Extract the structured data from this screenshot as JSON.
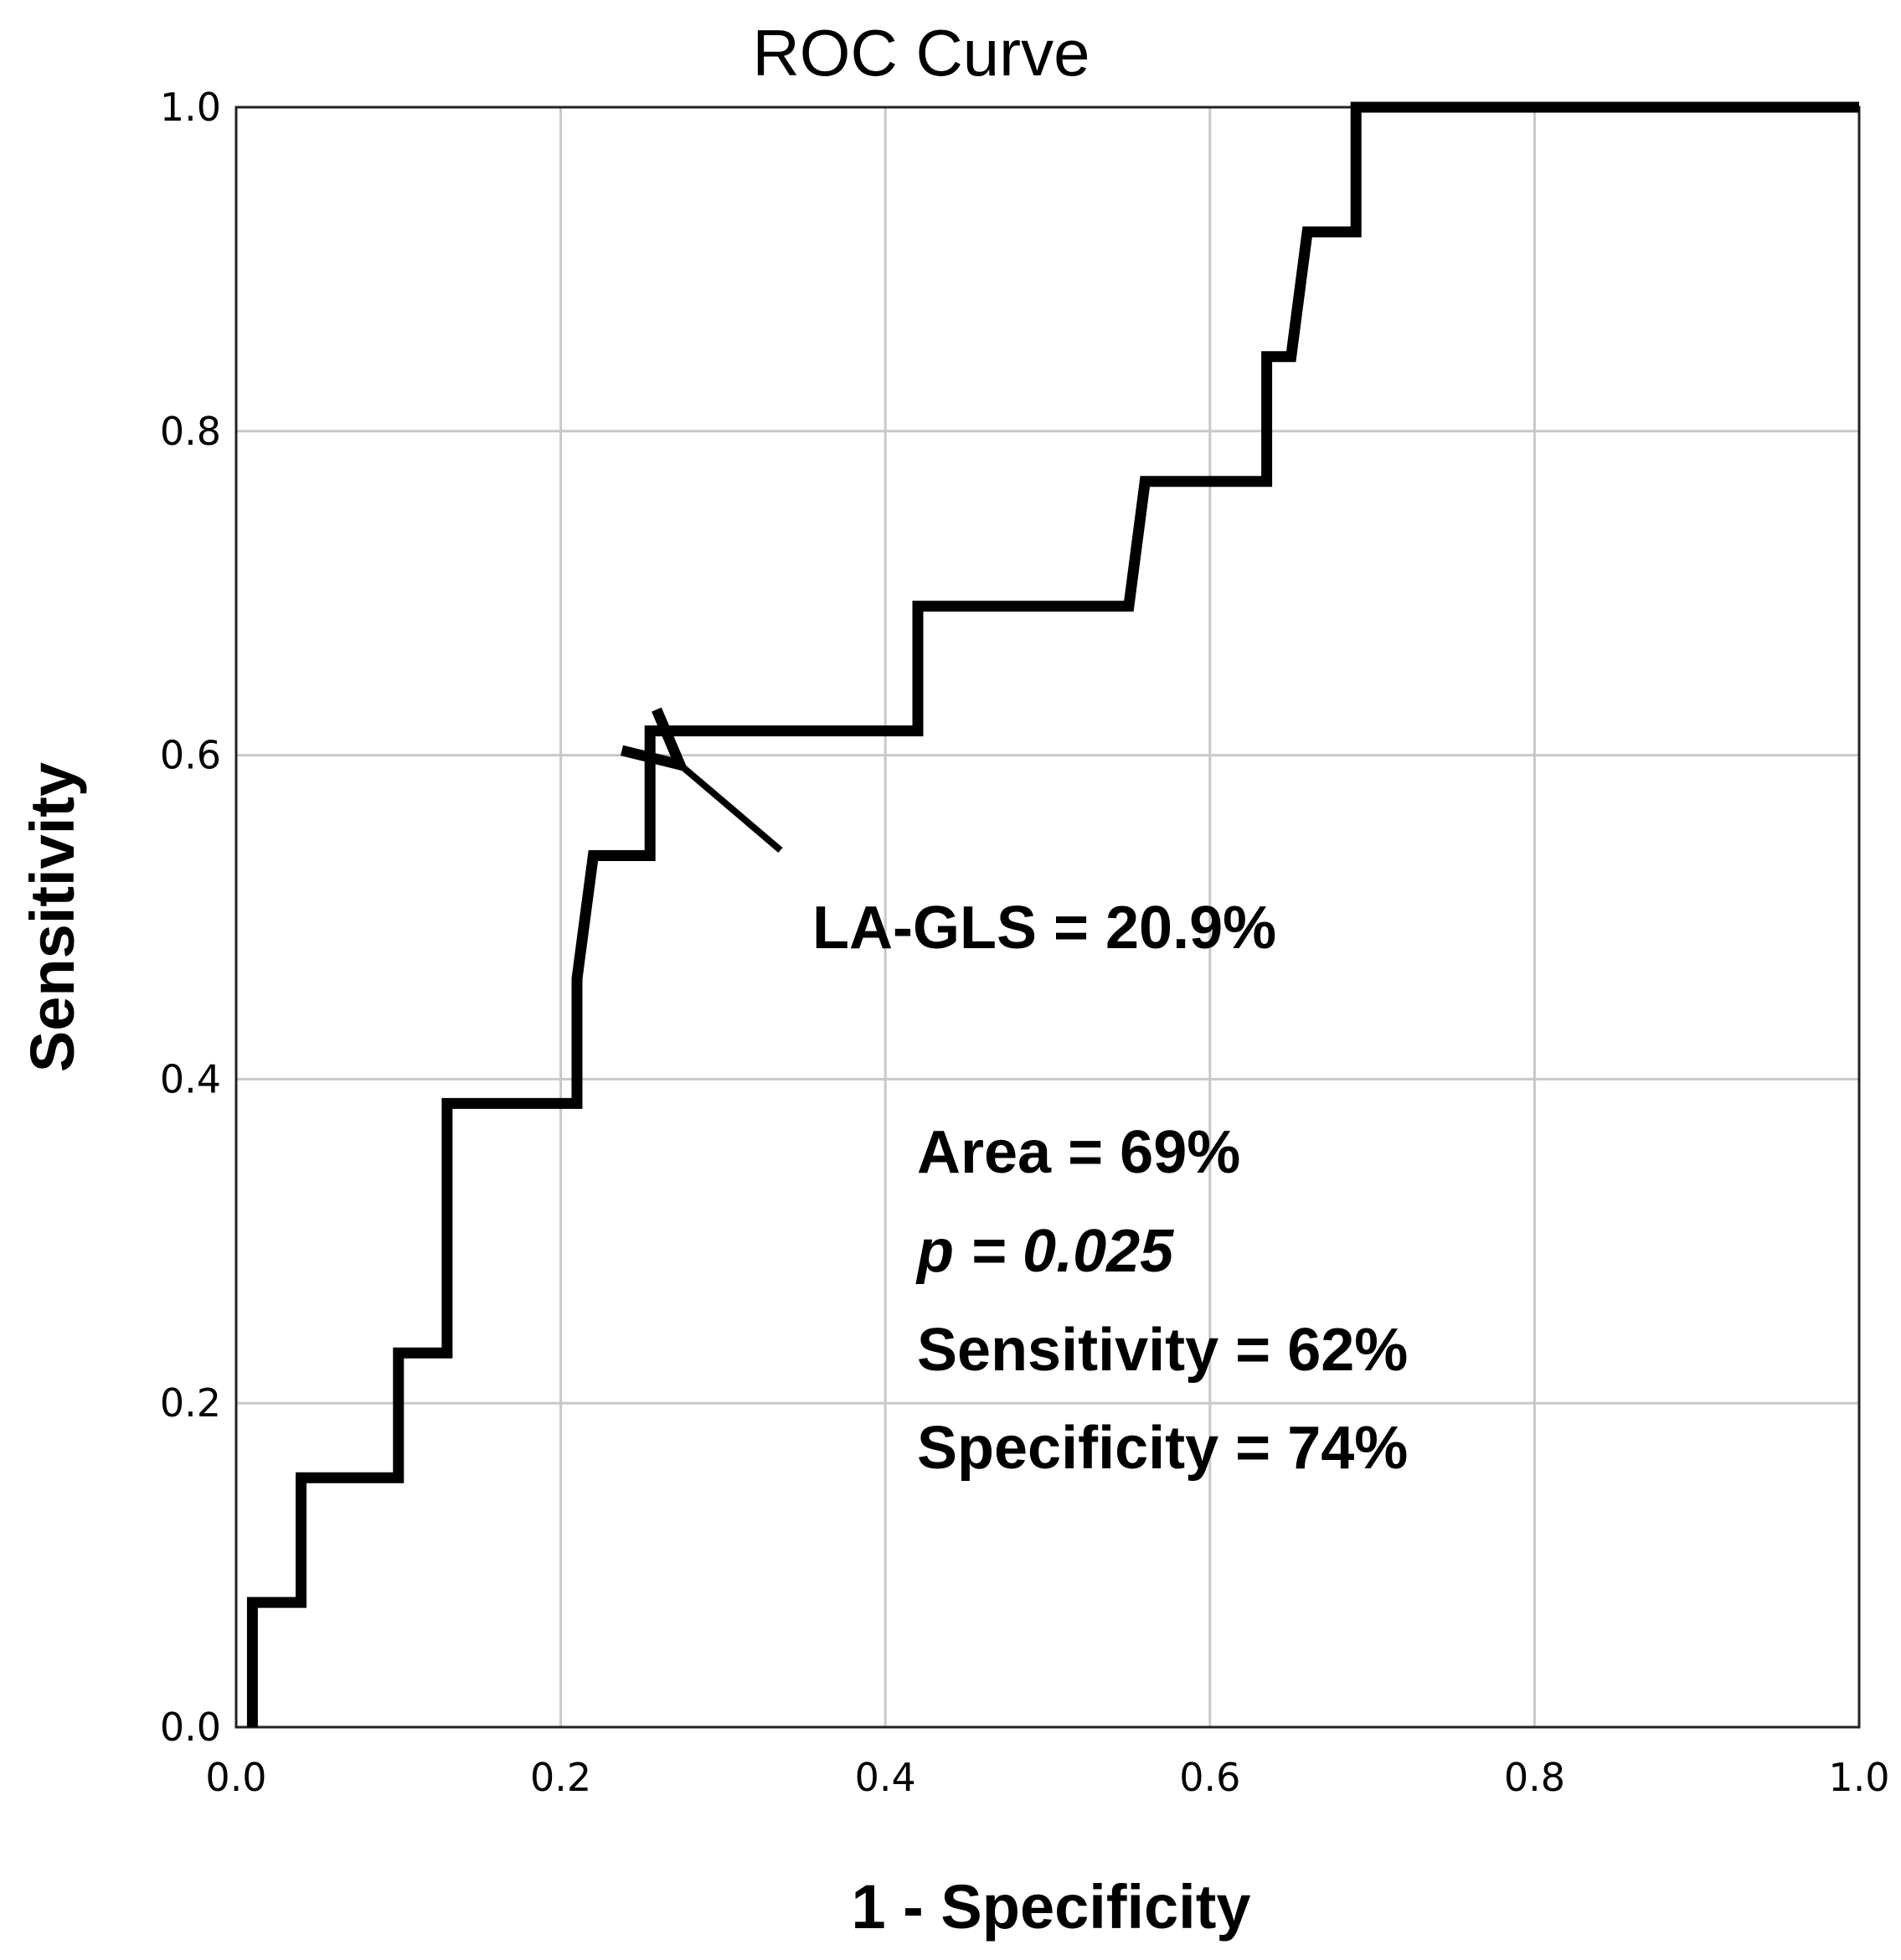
{
  "chart_data": {
    "type": "line",
    "title": "ROC Curve",
    "xlabel": "1 - Specificity",
    "ylabel": "Sensitivity",
    "xlim": [
      0,
      1
    ],
    "ylim": [
      0,
      1
    ],
    "grid": true,
    "xticks": [
      "0.0",
      "0.2",
      "0.4",
      "0.6",
      "0.8",
      "1.0"
    ],
    "yticks": [
      "0.0",
      "0.2",
      "0.4",
      "0.6",
      "0.8",
      "1.0"
    ],
    "series": [
      {
        "name": "ROC",
        "x": [
          0.01,
          0.01,
          0.04,
          0.04,
          0.1,
          0.1,
          0.13,
          0.13,
          0.21,
          0.21,
          0.22,
          0.255,
          0.255,
          0.42,
          0.42,
          0.55,
          0.56,
          0.635,
          0.635,
          0.65,
          0.66,
          0.69,
          0.69,
          1.0
        ],
        "y": [
          0.0,
          0.077,
          0.077,
          0.154,
          0.154,
          0.231,
          0.231,
          0.385,
          0.385,
          0.462,
          0.538,
          0.538,
          0.615,
          0.615,
          0.692,
          0.692,
          0.769,
          0.769,
          0.846,
          0.846,
          0.923,
          0.923,
          1.0,
          1.0
        ]
      }
    ],
    "annotations": {
      "arrow_label": "LA-GLS = 20.9%",
      "arrow_point": {
        "x": 0.255,
        "y": 0.615
      },
      "stats": {
        "area": "Area = 69%",
        "p_value": "p = 0.025",
        "sensitivity": "Sensitivity = 62%",
        "specificity": "Specificity = 74%"
      }
    }
  }
}
